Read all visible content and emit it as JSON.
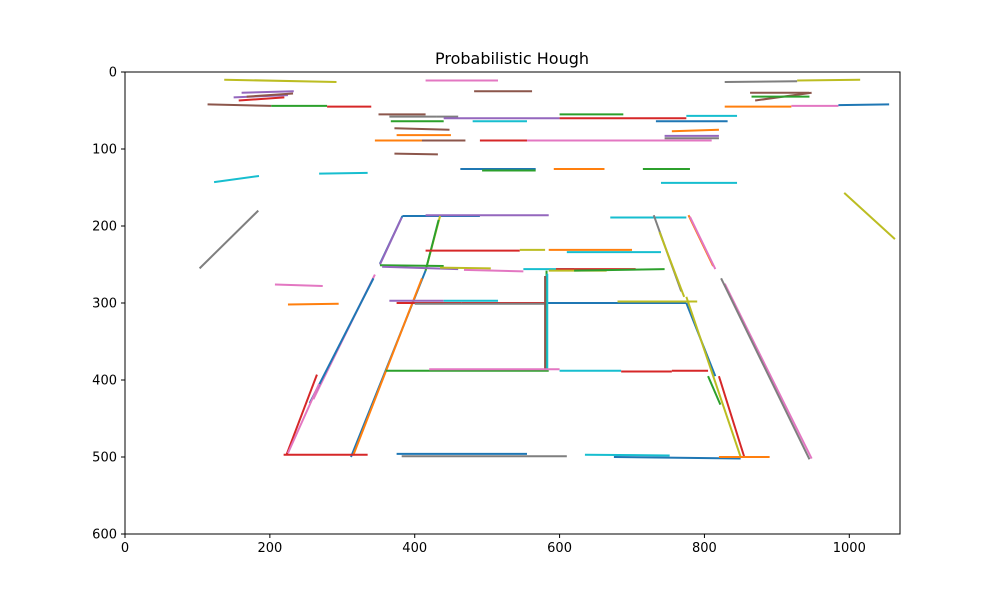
{
  "chart_data": {
    "type": "line",
    "title": "Probabilistic Hough",
    "xlabel": "",
    "ylabel": "",
    "xlim": [
      0,
      1070
    ],
    "ylim": [
      600,
      0
    ],
    "y_inverted": true,
    "grid": false,
    "legend": "none",
    "x_ticks": [
      0,
      200,
      400,
      600,
      800,
      1000
    ],
    "y_ticks": [
      0,
      100,
      200,
      300,
      400,
      500,
      600
    ],
    "segments": [
      {
        "x": [
          137,
          292
        ],
        "y": [
          10,
          13
        ],
        "color": "#bcbd22"
      },
      {
        "x": [
          415,
          515
        ],
        "y": [
          11,
          11
        ],
        "color": "#e377c2"
      },
      {
        "x": [
          828,
          928
        ],
        "y": [
          13,
          12
        ],
        "color": "#7f7f7f"
      },
      {
        "x": [
          928,
          1015
        ],
        "y": [
          11,
          10
        ],
        "color": "#bcbd22"
      },
      {
        "x": [
          161,
          233
        ],
        "y": [
          27,
          25
        ],
        "color": "#9467bd"
      },
      {
        "x": [
          150,
          225
        ],
        "y": [
          33,
          30
        ],
        "color": "#9467bd"
      },
      {
        "x": [
          157,
          220
        ],
        "y": [
          37,
          33
        ],
        "color": "#d62728"
      },
      {
        "x": [
          168,
          232
        ],
        "y": [
          32,
          28
        ],
        "color": "#8c564b"
      },
      {
        "x": [
          482,
          562
        ],
        "y": [
          25,
          25
        ],
        "color": "#8c564b"
      },
      {
        "x": [
          863,
          945
        ],
        "y": [
          27,
          27
        ],
        "color": "#8c564b"
      },
      {
        "x": [
          870,
          948
        ],
        "y": [
          37,
          27
        ],
        "color": "#8c564b"
      },
      {
        "x": [
          865,
          945
        ],
        "y": [
          32,
          32
        ],
        "color": "#2ca02c"
      },
      {
        "x": [
          114,
          202
        ],
        "y": [
          42,
          44
        ],
        "color": "#8c564b"
      },
      {
        "x": [
          202,
          279
        ],
        "y": [
          44,
          44
        ],
        "color": "#2ca02c"
      },
      {
        "x": [
          279,
          340
        ],
        "y": [
          45,
          45
        ],
        "color": "#d62728"
      },
      {
        "x": [
          828,
          920
        ],
        "y": [
          45,
          45
        ],
        "color": "#ff7f0e"
      },
      {
        "x": [
          920,
          985
        ],
        "y": [
          44,
          44
        ],
        "color": "#e377c2"
      },
      {
        "x": [
          985,
          1055
        ],
        "y": [
          43,
          42
        ],
        "color": "#1f77b4"
      },
      {
        "x": [
          350,
          415
        ],
        "y": [
          55,
          55
        ],
        "color": "#8c564b"
      },
      {
        "x": [
          365,
          430
        ],
        "y": [
          58,
          58
        ],
        "color": "#7f7f7f"
      },
      {
        "x": [
          430,
          460
        ],
        "y": [
          58,
          58
        ],
        "color": "#7f7f7f"
      },
      {
        "x": [
          600,
          688
        ],
        "y": [
          55,
          55
        ],
        "color": "#2ca02c"
      },
      {
        "x": [
          440,
          600
        ],
        "y": [
          60,
          60
        ],
        "color": "#9467bd"
      },
      {
        "x": [
          600,
          775
        ],
        "y": [
          60,
          60
        ],
        "color": "#d62728"
      },
      {
        "x": [
          775,
          845
        ],
        "y": [
          57,
          57
        ],
        "color": "#17becf"
      },
      {
        "x": [
          367,
          440
        ],
        "y": [
          64,
          64
        ],
        "color": "#2ca02c"
      },
      {
        "x": [
          480,
          555
        ],
        "y": [
          64,
          64
        ],
        "color": "#17becf"
      },
      {
        "x": [
          733,
          832
        ],
        "y": [
          64,
          64
        ],
        "color": "#1f77b4"
      },
      {
        "x": [
          372,
          448
        ],
        "y": [
          73,
          75
        ],
        "color": "#8c564b"
      },
      {
        "x": [
          755,
          820
        ],
        "y": [
          77,
          75
        ],
        "color": "#ff7f0e"
      },
      {
        "x": [
          375,
          450
        ],
        "y": [
          82,
          82
        ],
        "color": "#ff7f0e"
      },
      {
        "x": [
          745,
          820
        ],
        "y": [
          83,
          83
        ],
        "color": "#9467bd"
      },
      {
        "x": [
          745,
          820
        ],
        "y": [
          86,
          86
        ],
        "color": "#7f7f7f"
      },
      {
        "x": [
          345,
          420
        ],
        "y": [
          89,
          89
        ],
        "color": "#ff7f0e"
      },
      {
        "x": [
          410,
          470
        ],
        "y": [
          89,
          89
        ],
        "color": "#8c564b"
      },
      {
        "x": [
          490,
          555
        ],
        "y": [
          89,
          89
        ],
        "color": "#d62728"
      },
      {
        "x": [
          555,
          810
        ],
        "y": [
          89,
          89
        ],
        "color": "#e377c2"
      },
      {
        "x": [
          372,
          432
        ],
        "y": [
          106,
          107
        ],
        "color": "#8c564b"
      },
      {
        "x": [
          463,
          567
        ],
        "y": [
          126,
          126
        ],
        "color": "#1f77b4"
      },
      {
        "x": [
          493,
          567
        ],
        "y": [
          128,
          128
        ],
        "color": "#2ca02c"
      },
      {
        "x": [
          592,
          662
        ],
        "y": [
          126,
          126
        ],
        "color": "#ff7f0e"
      },
      {
        "x": [
          715,
          780
        ],
        "y": [
          126,
          126
        ],
        "color": "#2ca02c"
      },
      {
        "x": [
          123,
          185
        ],
        "y": [
          143,
          135
        ],
        "color": "#17becf"
      },
      {
        "x": [
          268,
          335
        ],
        "y": [
          132,
          131
        ],
        "color": "#17becf"
      },
      {
        "x": [
          740,
          845
        ],
        "y": [
          144,
          144
        ],
        "color": "#17becf"
      },
      {
        "x": [
          103,
          184
        ],
        "y": [
          255,
          180
        ],
        "color": "#7f7f7f"
      },
      {
        "x": [
          993,
          1063
        ],
        "y": [
          157,
          217
        ],
        "color": "#bcbd22"
      },
      {
        "x": [
          383,
          490
        ],
        "y": [
          187,
          187
        ],
        "color": "#1f77b4"
      },
      {
        "x": [
          415,
          585
        ],
        "y": [
          186,
          186
        ],
        "color": "#9467bd"
      },
      {
        "x": [
          670,
          775
        ],
        "y": [
          189,
          189
        ],
        "color": "#17becf"
      },
      {
        "x": [
          383,
          352
        ],
        "y": [
          187,
          249
        ],
        "color": "#1f77b4"
      },
      {
        "x": [
          382,
          352
        ],
        "y": [
          189,
          250
        ],
        "color": "#9467bd"
      },
      {
        "x": [
          435,
          415
        ],
        "y": [
          187,
          258
        ],
        "color": "#bcbd22"
      },
      {
        "x": [
          433,
          415
        ],
        "y": [
          192,
          258
        ],
        "color": "#2ca02c"
      },
      {
        "x": [
          778,
          812
        ],
        "y": [
          186,
          252
        ],
        "color": "#ff7f0e"
      },
      {
        "x": [
          780,
          815
        ],
        "y": [
          188,
          256
        ],
        "color": "#e377c2"
      },
      {
        "x": [
          730,
          768
        ],
        "y": [
          186,
          285
        ],
        "color": "#7f7f7f"
      },
      {
        "x": [
          738,
          772
        ],
        "y": [
          208,
          292
        ],
        "color": "#bcbd22"
      },
      {
        "x": [
          415,
          545
        ],
        "y": [
          232,
          232
        ],
        "color": "#d62728"
      },
      {
        "x": [
          545,
          580
        ],
        "y": [
          231,
          231
        ],
        "color": "#bcbd22"
      },
      {
        "x": [
          585,
          700
        ],
        "y": [
          231,
          231
        ],
        "color": "#ff7f0e"
      },
      {
        "x": [
          610,
          740
        ],
        "y": [
          234,
          234
        ],
        "color": "#17becf"
      },
      {
        "x": [
          352,
          440
        ],
        "y": [
          251,
          252
        ],
        "color": "#2ca02c"
      },
      {
        "x": [
          355,
          460
        ],
        "y": [
          253,
          256
        ],
        "color": "#9467bd"
      },
      {
        "x": [
          435,
          505
        ],
        "y": [
          254,
          255
        ],
        "color": "#bcbd22"
      },
      {
        "x": [
          468,
          550
        ],
        "y": [
          257,
          259
        ],
        "color": "#e377c2"
      },
      {
        "x": [
          550,
          620
        ],
        "y": [
          256,
          256
        ],
        "color": "#17becf"
      },
      {
        "x": [
          595,
          705
        ],
        "y": [
          256,
          256
        ],
        "color": "#d62728"
      },
      {
        "x": [
          585,
          665
        ],
        "y": [
          258,
          258
        ],
        "color": "#bcbd22"
      },
      {
        "x": [
          620,
          745
        ],
        "y": [
          258,
          256
        ],
        "color": "#2ca02c"
      },
      {
        "x": [
          207,
          273
        ],
        "y": [
          276,
          278
        ],
        "color": "#e377c2"
      },
      {
        "x": [
          225,
          295
        ],
        "y": [
          302,
          301
        ],
        "color": "#ff7f0e"
      },
      {
        "x": [
          345,
          260
        ],
        "y": [
          263,
          425
        ],
        "color": "#e377c2"
      },
      {
        "x": [
          343,
          255
        ],
        "y": [
          268,
          430
        ],
        "color": "#1f77b4"
      },
      {
        "x": [
          265,
          223
        ],
        "y": [
          393,
          497
        ],
        "color": "#d62728"
      },
      {
        "x": [
          268,
          225
        ],
        "y": [
          405,
          495
        ],
        "color": "#e377c2"
      },
      {
        "x": [
          415,
          312
        ],
        "y": [
          258,
          500
        ],
        "color": "#1f77b4"
      },
      {
        "x": [
          410,
          315
        ],
        "y": [
          268,
          498
        ],
        "color": "#ff7f0e"
      },
      {
        "x": [
          365,
          440
        ],
        "y": [
          297,
          297
        ],
        "color": "#9467bd"
      },
      {
        "x": [
          375,
          465
        ],
        "y": [
          300,
          300
        ],
        "color": "#d62728"
      },
      {
        "x": [
          440,
          515
        ],
        "y": [
          297,
          297
        ],
        "color": "#17becf"
      },
      {
        "x": [
          465,
          580
        ],
        "y": [
          300,
          300
        ],
        "color": "#d62728"
      },
      {
        "x": [
          400,
          580
        ],
        "y": [
          301,
          301
        ],
        "color": "#7f7f7f"
      },
      {
        "x": [
          580,
          775
        ],
        "y": [
          300,
          300
        ],
        "color": "#1f77b4"
      },
      {
        "x": [
          680,
          790
        ],
        "y": [
          298,
          298
        ],
        "color": "#bcbd22"
      },
      {
        "x": [
          582,
          582
        ],
        "y": [
          258,
          388
        ],
        "color": "#2ca02c"
      },
      {
        "x": [
          580,
          580
        ],
        "y": [
          265,
          385
        ],
        "color": "#8c564b"
      },
      {
        "x": [
          583,
          583
        ],
        "y": [
          262,
          388
        ],
        "color": "#17becf"
      },
      {
        "x": [
          775,
          815
        ],
        "y": [
          300,
          395
        ],
        "color": "#1f77b4"
      },
      {
        "x": [
          775,
          850
        ],
        "y": [
          292,
          500
        ],
        "color": "#bcbd22"
      },
      {
        "x": [
          805,
          822
        ],
        "y": [
          395,
          432
        ],
        "color": "#2ca02c"
      },
      {
        "x": [
          820,
          855
        ],
        "y": [
          395,
          500
        ],
        "color": "#d62728"
      },
      {
        "x": [
          828,
          948
        ],
        "y": [
          275,
          502
        ],
        "color": "#e377c2"
      },
      {
        "x": [
          823,
          945
        ],
        "y": [
          268,
          503
        ],
        "color": "#7f7f7f"
      },
      {
        "x": [
          360,
          585
        ],
        "y": [
          388,
          388
        ],
        "color": "#2ca02c"
      },
      {
        "x": [
          420,
          600
        ],
        "y": [
          386,
          386
        ],
        "color": "#e377c2"
      },
      {
        "x": [
          600,
          685
        ],
        "y": [
          388,
          388
        ],
        "color": "#17becf"
      },
      {
        "x": [
          685,
          755
        ],
        "y": [
          389,
          389
        ],
        "color": "#d62728"
      },
      {
        "x": [
          755,
          805
        ],
        "y": [
          388,
          388
        ],
        "color": "#d62728"
      },
      {
        "x": [
          219,
          335
        ],
        "y": [
          497,
          497
        ],
        "color": "#d62728"
      },
      {
        "x": [
          375,
          555
        ],
        "y": [
          496,
          496
        ],
        "color": "#1f77b4"
      },
      {
        "x": [
          382,
          610
        ],
        "y": [
          499,
          499
        ],
        "color": "#7f7f7f"
      },
      {
        "x": [
          635,
          752
        ],
        "y": [
          497,
          498
        ],
        "color": "#17becf"
      },
      {
        "x": [
          675,
          850
        ],
        "y": [
          500,
          502
        ],
        "color": "#1f77b4"
      },
      {
        "x": [
          820,
          890
        ],
        "y": [
          500,
          500
        ],
        "color": "#ff7f0e"
      }
    ]
  }
}
